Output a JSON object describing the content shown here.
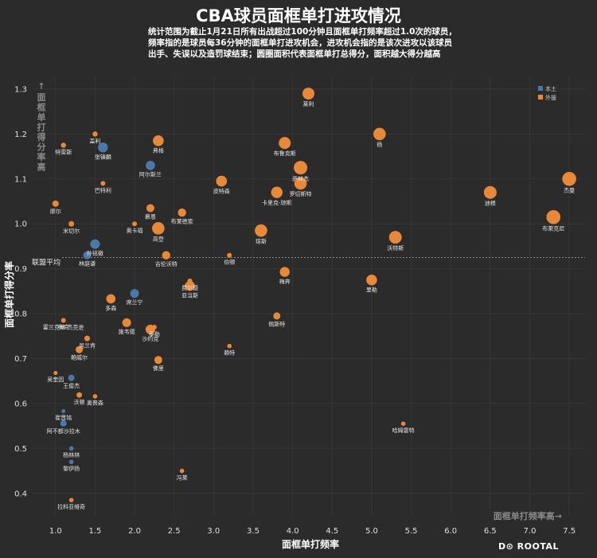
{
  "chart_data": {
    "type": "scatter",
    "title": "CBA球员面框单打进攻情况",
    "subtitle_lines": [
      "统计范围为截止1月21日所有出战超过100分钟且面框单打频率超过1.0次的球员，",
      "频率指的是球员每36分钟的面框单打进攻机会，进攻机会指的是该次进攻以该球员",
      "出手、失误以及造罚球结束；圆圈面积代表面框单打总得分，面积越大得分越高"
    ],
    "xlabel": "面框单打频率",
    "ylabel": "面框单打得分率",
    "xlim": [
      0.7,
      7.7
    ],
    "ylim": [
      0.35,
      1.33
    ],
    "xticks": [
      "1.0",
      "1.5",
      "2.0",
      "2.5",
      "3.0",
      "3.5",
      "4.0",
      "4.5",
      "5.0",
      "5.5",
      "6.0",
      "6.5",
      "7.0",
      "7.5"
    ],
    "yticks": [
      "0.4",
      "0.5",
      "0.6",
      "0.7",
      "0.8",
      "0.9",
      "1.0",
      "1.1",
      "1.2",
      "1.3"
    ],
    "legend": {
      "position": "top-right",
      "entries": [
        "本土",
        "外援"
      ]
    },
    "series_colors": {
      "本土": "#4a78a8",
      "外援": "#e8893a"
    },
    "reference_line": {
      "y": 0.925,
      "label": "联盟平均"
    },
    "y_hint": "面框单打得分率高→",
    "x_hint": "面框单打频率高→",
    "points": [
      {
        "name": "莱利",
        "x": 4.2,
        "y": 1.29,
        "size": 7.5,
        "group": "外援"
      },
      {
        "name": "盖利",
        "x": 1.5,
        "y": 1.2,
        "size": 3.2,
        "group": "外援"
      },
      {
        "name": "特雷斯",
        "x": 1.1,
        "y": 1.175,
        "size": 3.2,
        "group": "外援"
      },
      {
        "name": "张镇麟",
        "x": 1.6,
        "y": 1.17,
        "size": 6.2,
        "group": "本土"
      },
      {
        "name": "弗格",
        "x": 2.3,
        "y": 1.185,
        "size": 6.8,
        "group": "外援"
      },
      {
        "name": "布鲁克斯",
        "x": 3.9,
        "y": 1.18,
        "size": 7.5,
        "group": "外援"
      },
      {
        "name": "杨",
        "x": 5.1,
        "y": 1.2,
        "size": 7.8,
        "group": "外援"
      },
      {
        "name": "阿尔斯兰",
        "x": 2.2,
        "y": 1.13,
        "size": 5.8,
        "group": "本土"
      },
      {
        "name": "萨林杰",
        "x": 4.1,
        "y": 1.125,
        "size": 8.5,
        "group": "外援"
      },
      {
        "name": "巴特利",
        "x": 1.6,
        "y": 1.09,
        "size": 3.0,
        "group": "外援"
      },
      {
        "name": "皮特森",
        "x": 3.1,
        "y": 1.095,
        "size": 6.8,
        "group": "外援"
      },
      {
        "name": "卡里克-琼斯",
        "x": 3.8,
        "y": 1.07,
        "size": 7.2,
        "group": "外援"
      },
      {
        "name": "罗切斯特",
        "x": 4.1,
        "y": 1.09,
        "size": 7.8,
        "group": "外援"
      },
      {
        "name": "杰曼",
        "x": 7.5,
        "y": 1.1,
        "size": 8.8,
        "group": "外援"
      },
      {
        "name": "迪根",
        "x": 6.5,
        "y": 1.07,
        "size": 8.0,
        "group": "外援"
      },
      {
        "name": "摩尔",
        "x": 1.0,
        "y": 1.045,
        "size": 4.0,
        "group": "外援"
      },
      {
        "name": "慕恩",
        "x": 2.2,
        "y": 1.035,
        "size": 5.0,
        "group": "外援"
      },
      {
        "name": "布莱德索",
        "x": 2.6,
        "y": 1.025,
        "size": 5.2,
        "group": "外援"
      },
      {
        "name": "米切尔",
        "x": 1.2,
        "y": 1.0,
        "size": 3.5,
        "group": "外援"
      },
      {
        "name": "奥卡福",
        "x": 2.0,
        "y": 1.0,
        "size": 3.0,
        "group": "外援"
      },
      {
        "name": "布莱克尼",
        "x": 7.3,
        "y": 1.015,
        "size": 8.8,
        "group": "外援"
      },
      {
        "name": "高登",
        "x": 2.3,
        "y": 0.99,
        "size": 7.8,
        "group": "外援"
      },
      {
        "name": "琼斯",
        "x": 3.6,
        "y": 0.985,
        "size": 7.8,
        "group": "外援"
      },
      {
        "name": "孙铭徽",
        "x": 1.5,
        "y": 0.955,
        "size": 6.0,
        "group": "本土"
      },
      {
        "name": "沃特斯",
        "x": 5.3,
        "y": 0.97,
        "size": 8.0,
        "group": "外援"
      },
      {
        "name": "林庭谦",
        "x": 1.4,
        "y": 0.93,
        "size": 5.0,
        "group": "本土"
      },
      {
        "name": "吉伦沃特",
        "x": 2.4,
        "y": 0.93,
        "size": 5.2,
        "group": "外援"
      },
      {
        "name": "伯顿",
        "x": 3.2,
        "y": 0.93,
        "size": 3.0,
        "group": "外援"
      },
      {
        "name": "梅奔",
        "x": 3.9,
        "y": 0.893,
        "size": 6.2,
        "group": "外援"
      },
      {
        "name": "里勒",
        "x": 5.0,
        "y": 0.875,
        "size": 6.8,
        "group": "外援"
      },
      {
        "name": "费尔德",
        "x": 2.7,
        "y": 0.873,
        "size": 3.0,
        "group": "外援"
      },
      {
        "name": "亚当斯",
        "x": 2.7,
        "y": 0.862,
        "size": 6.2,
        "group": "外援"
      },
      {
        "name": "多森",
        "x": 1.7,
        "y": 0.833,
        "size": 5.8,
        "group": "外援"
      },
      {
        "name": "席兰宁",
        "x": 2.0,
        "y": 0.845,
        "size": 5.5,
        "group": "本土"
      },
      {
        "name": "霍兰克林-杰克逊",
        "x": 1.1,
        "y": 0.785,
        "size": 3.0,
        "group": "外援"
      },
      {
        "name": "梅克",
        "x": 1.1,
        "y": 0.785,
        "size": 2.5,
        "group": "外援"
      },
      {
        "name": "施韦德",
        "x": 1.9,
        "y": 0.78,
        "size": 5.5,
        "group": "外援"
      },
      {
        "name": "泰勒",
        "x": 2.25,
        "y": 0.77,
        "size": 3.0,
        "group": "外援"
      },
      {
        "name": "沙约克",
        "x": 2.2,
        "y": 0.765,
        "size": 6.0,
        "group": "外援"
      },
      {
        "name": "佩斯特",
        "x": 3.8,
        "y": 0.795,
        "size": 4.5,
        "group": "外援"
      },
      {
        "name": "晃兰肯",
        "x": 1.4,
        "y": 0.745,
        "size": 3.5,
        "group": "外援"
      },
      {
        "name": "鲍威尔",
        "x": 1.3,
        "y": 0.72,
        "size": 4.5,
        "group": "外援"
      },
      {
        "name": "赖特",
        "x": 3.2,
        "y": 0.728,
        "size": 2.8,
        "group": "外援"
      },
      {
        "name": "佛里",
        "x": 2.3,
        "y": 0.697,
        "size": 5.0,
        "group": "外援"
      },
      {
        "name": "吴奎因",
        "x": 1.0,
        "y": 0.668,
        "size": 2.5,
        "group": "外援"
      },
      {
        "name": "王俊杰",
        "x": 1.2,
        "y": 0.657,
        "size": 4.0,
        "group": "本土"
      },
      {
        "name": "沃顿",
        "x": 1.3,
        "y": 0.619,
        "size": 3.5,
        "group": "外援"
      },
      {
        "name": "奥普森",
        "x": 1.5,
        "y": 0.616,
        "size": 2.8,
        "group": "外援"
      },
      {
        "name": "崔晋铭",
        "x": 1.1,
        "y": 0.583,
        "size": 2.5,
        "group": "本土"
      },
      {
        "name": "阿不都沙拉木",
        "x": 1.1,
        "y": 0.556,
        "size": 4.0,
        "group": "本土"
      },
      {
        "name": "哈姆雷特",
        "x": 5.4,
        "y": 0.555,
        "size": 2.8,
        "group": "外援"
      },
      {
        "name": "杨林林",
        "x": 1.2,
        "y": 0.5,
        "size": 2.8,
        "group": "本土"
      },
      {
        "name": "黎伊扬",
        "x": 1.2,
        "y": 0.47,
        "size": 2.8,
        "group": "本土"
      },
      {
        "name": "冯莱",
        "x": 2.6,
        "y": 0.45,
        "size": 2.8,
        "group": "外援"
      },
      {
        "name": "拉科亚维奇",
        "x": 1.2,
        "y": 0.385,
        "size": 2.8,
        "group": "外援"
      }
    ]
  },
  "brand": "D⊙ ROOTAL"
}
